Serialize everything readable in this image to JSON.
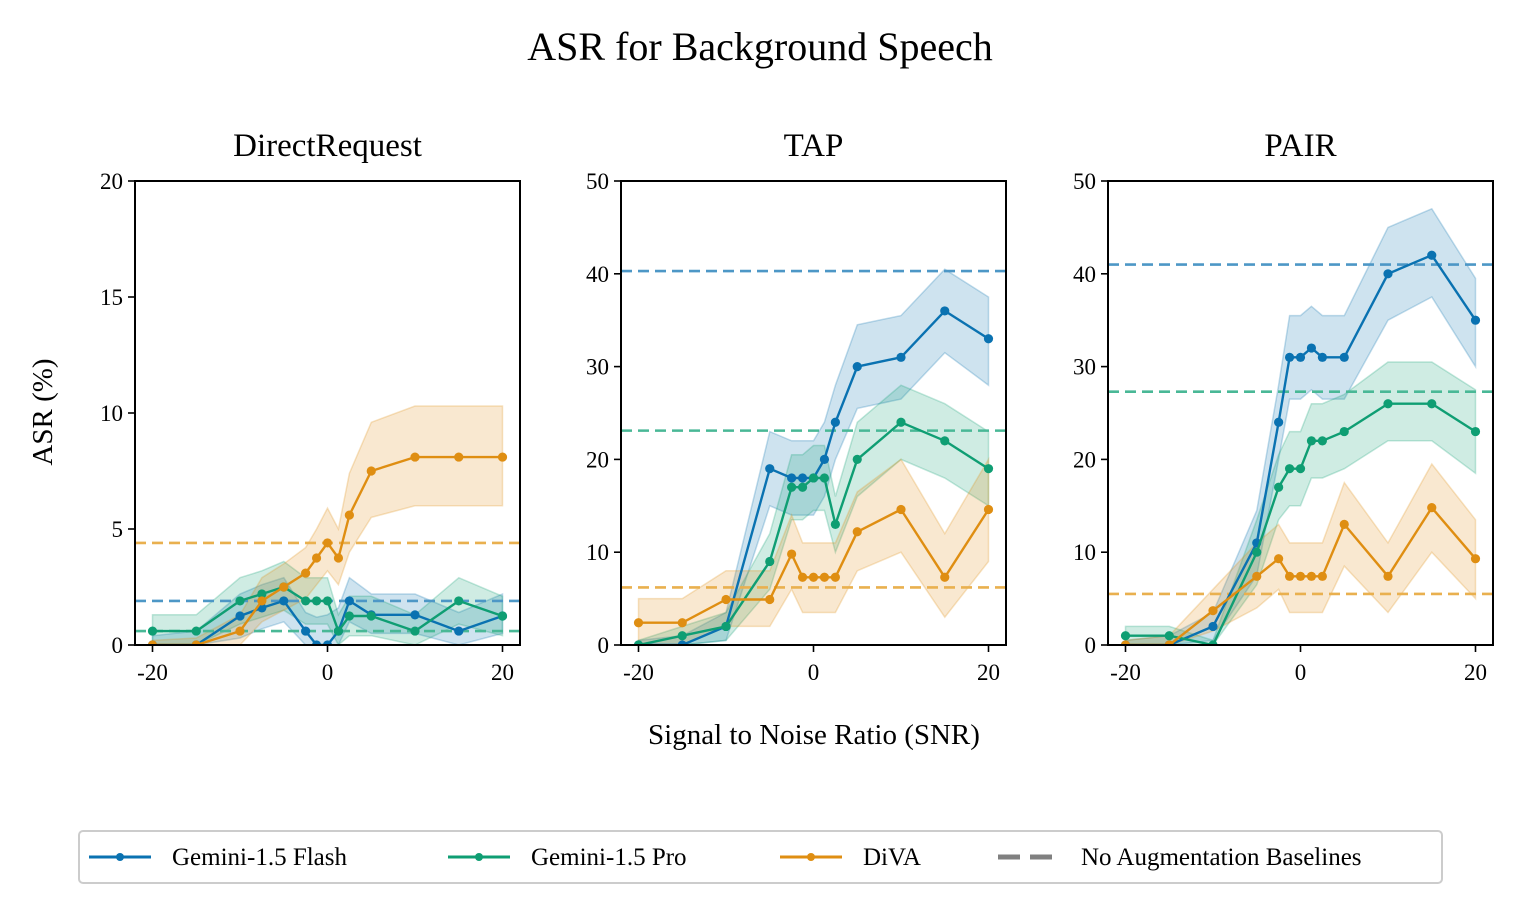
{
  "figure": {
    "title": "ASR for Background Speech",
    "xlabel": "Signal to Noise Ratio (SNR)",
    "ylabel": "ASR (%)"
  },
  "colors": {
    "flash": "#0a72b1",
    "pro": "#0f9e73",
    "diva": "#df8e12",
    "baseline_flash": "#4d97c6",
    "baseline_pro": "#49b896",
    "baseline_diva": "#e9b04f",
    "legend_baseline": "#808080"
  },
  "legend": {
    "items": [
      {
        "label": "Gemini-1.5 Flash",
        "series": "flash"
      },
      {
        "label": "Gemini-1.5 Pro",
        "series": "pro"
      },
      {
        "label": "DiVA",
        "series": "diva"
      },
      {
        "label": "No Augmentation Baselines",
        "series": "baseline"
      }
    ]
  },
  "chart_data": [
    {
      "type": "line",
      "title": "DirectRequest",
      "x": [
        -20,
        -15,
        -10,
        -7.5,
        -5,
        -2.5,
        -1.25,
        0,
        1.25,
        2.5,
        5,
        10,
        15,
        20
      ],
      "xticks": [
        -20,
        0,
        20
      ],
      "xtick_labels": [
        "-20",
        "0",
        "20"
      ],
      "xlim": [
        -22,
        22
      ],
      "ylim": [
        0,
        20
      ],
      "yticks": [
        0,
        5,
        10,
        15,
        20
      ],
      "ytick_labels": [
        "0",
        "5",
        "10",
        "15",
        "20"
      ],
      "series": [
        {
          "key": "flash",
          "name": "Gemini-1.5 Flash",
          "values": [
            0,
            0,
            1.25,
            1.6,
            1.9,
            0.6,
            0,
            0,
            0.6,
            1.9,
            1.3,
            1.3,
            0.6,
            1.25
          ],
          "lower": [
            0,
            0,
            0.3,
            0.7,
            1.0,
            0,
            0,
            0,
            0,
            1.0,
            0.5,
            0.5,
            0,
            0.5
          ],
          "upper": [
            0.4,
            0.6,
            2.2,
            2.6,
            2.9,
            1.4,
            1.2,
            1.3,
            1.6,
            2.9,
            2.2,
            2.2,
            1.4,
            2.2
          ],
          "baseline": 1.9
        },
        {
          "key": "pro",
          "name": "Gemini-1.5 Pro",
          "values": [
            0.6,
            0.6,
            1.9,
            2.2,
            2.5,
            1.9,
            1.9,
            1.9,
            0.6,
            1.25,
            1.25,
            0.6,
            1.9,
            1.25
          ],
          "lower": [
            0,
            0,
            0.9,
            1.2,
            1.5,
            0.9,
            0.9,
            0.9,
            0,
            0.4,
            0.4,
            0,
            0.9,
            0.4
          ],
          "upper": [
            1.3,
            1.3,
            2.9,
            3.2,
            3.6,
            2.9,
            2.9,
            2.9,
            1.3,
            2.1,
            2.1,
            1.3,
            2.9,
            2.1
          ],
          "baseline": 0.6
        },
        {
          "key": "diva",
          "name": "DiVA",
          "values": [
            0,
            0,
            0.6,
            1.9,
            2.5,
            3.1,
            3.75,
            4.4,
            3.75,
            5.6,
            7.5,
            8.1,
            8.1,
            8.1
          ],
          "lower": [
            0,
            0,
            0,
            1.0,
            1.5,
            2.0,
            2.6,
            3.2,
            2.6,
            4.0,
            5.5,
            6.0,
            6.0,
            6.0
          ],
          "upper": [
            0.2,
            0.3,
            1.3,
            2.9,
            3.5,
            4.2,
            5.0,
            5.9,
            5.0,
            7.4,
            9.6,
            10.3,
            10.3,
            10.3
          ],
          "baseline": 4.4
        }
      ]
    },
    {
      "type": "line",
      "title": "TAP",
      "x": [
        -20,
        -15,
        -10,
        -5,
        -2.5,
        -1.25,
        0,
        1.25,
        2.5,
        5,
        10,
        15,
        20
      ],
      "xticks": [
        -20,
        0,
        20
      ],
      "xtick_labels": [
        "-20",
        "0",
        "20"
      ],
      "xlim": [
        -22,
        22
      ],
      "ylim": [
        0,
        50
      ],
      "yticks": [
        0,
        10,
        20,
        30,
        40,
        50
      ],
      "ytick_labels": [
        "0",
        "10",
        "20",
        "30",
        "40",
        "50"
      ],
      "series": [
        {
          "key": "flash",
          "name": "Gemini-1.5 Flash",
          "values": [
            0,
            0,
            2,
            19,
            18,
            18,
            18,
            20,
            24,
            30,
            31,
            36,
            33
          ],
          "lower": [
            0,
            0,
            0.5,
            15,
            14,
            14,
            14,
            16,
            20,
            25.5,
            26.5,
            31.5,
            28
          ],
          "upper": [
            0.5,
            1,
            3.5,
            23,
            22,
            22,
            22,
            24,
            28,
            34.5,
            35.5,
            40.5,
            37.5
          ],
          "baseline": 40.3
        },
        {
          "key": "pro",
          "name": "Gemini-1.5 Pro",
          "values": [
            0,
            1,
            2,
            9,
            17,
            17,
            18,
            18,
            13,
            20,
            24,
            22,
            19
          ],
          "lower": [
            0,
            0,
            0.5,
            6,
            13.5,
            13.5,
            14.5,
            14.5,
            10,
            16,
            20,
            18,
            15
          ],
          "upper": [
            0.5,
            2,
            3.5,
            12,
            20.5,
            20.5,
            21.5,
            21.5,
            16,
            24,
            28,
            26,
            23
          ],
          "baseline": 23.1
        },
        {
          "key": "diva",
          "name": "DiVA",
          "values": [
            2.4,
            2.4,
            4.9,
            4.9,
            9.8,
            7.3,
            7.3,
            7.3,
            7.3,
            12.2,
            14.6,
            7.3,
            14.6
          ],
          "lower": [
            0,
            0,
            2,
            2,
            6,
            3.5,
            3.5,
            3.5,
            3.5,
            8,
            10,
            3,
            9
          ],
          "upper": [
            5,
            5,
            8,
            8,
            14,
            11,
            11,
            11,
            11,
            16.5,
            20,
            12,
            20
          ],
          "baseline": 6.2
        }
      ]
    },
    {
      "type": "line",
      "title": "PAIR",
      "x": [
        -20,
        -15,
        -10,
        -5,
        -2.5,
        -1.25,
        0,
        1.25,
        2.5,
        5,
        10,
        15,
        20
      ],
      "xticks": [
        -20,
        0,
        20
      ],
      "xtick_labels": [
        "-20",
        "0",
        "20"
      ],
      "xlim": [
        -22,
        22
      ],
      "ylim": [
        0,
        50
      ],
      "yticks": [
        0,
        10,
        20,
        30,
        40,
        50
      ],
      "ytick_labels": [
        "0",
        "10",
        "20",
        "30",
        "40",
        "50"
      ],
      "series": [
        {
          "key": "flash",
          "name": "Gemini-1.5 Flash",
          "values": [
            0,
            0,
            2,
            11,
            24,
            31,
            31,
            32,
            31,
            31,
            40,
            42,
            35
          ],
          "lower": [
            0,
            0,
            0.5,
            7.5,
            20,
            26.5,
            26.5,
            27.5,
            26.5,
            26.5,
            35,
            37.5,
            30
          ],
          "upper": [
            0.5,
            1,
            3.5,
            14.5,
            28,
            35.5,
            35.5,
            36.5,
            35.5,
            35.5,
            45,
            47,
            39.5
          ],
          "baseline": 41
        },
        {
          "key": "pro",
          "name": "Gemini-1.5 Pro",
          "values": [
            1,
            1,
            0,
            10,
            17,
            19,
            19,
            22,
            22,
            23,
            26,
            26,
            23
          ],
          "lower": [
            0,
            0,
            0,
            6.5,
            13.5,
            15,
            15,
            18,
            18,
            19,
            22,
            22,
            18.5
          ],
          "upper": [
            2,
            2,
            0.5,
            13.5,
            20.5,
            23,
            23,
            26,
            26,
            27,
            30.5,
            30.5,
            27.5
          ],
          "baseline": 27.3
        },
        {
          "key": "diva",
          "name": "DiVA",
          "values": [
            0,
            0,
            3.7,
            7.4,
            9.3,
            7.4,
            7.4,
            7.4,
            7.4,
            13,
            7.4,
            14.8,
            9.3
          ],
          "lower": [
            0,
            0,
            1.5,
            4,
            6,
            3.5,
            3.5,
            3.5,
            3.5,
            8.5,
            3.5,
            10,
            5
          ],
          "upper": [
            0.5,
            1,
            6,
            11,
            13,
            11,
            11,
            11,
            11,
            17.5,
            11,
            19.5,
            13.5
          ],
          "baseline": 5.5
        }
      ]
    }
  ]
}
